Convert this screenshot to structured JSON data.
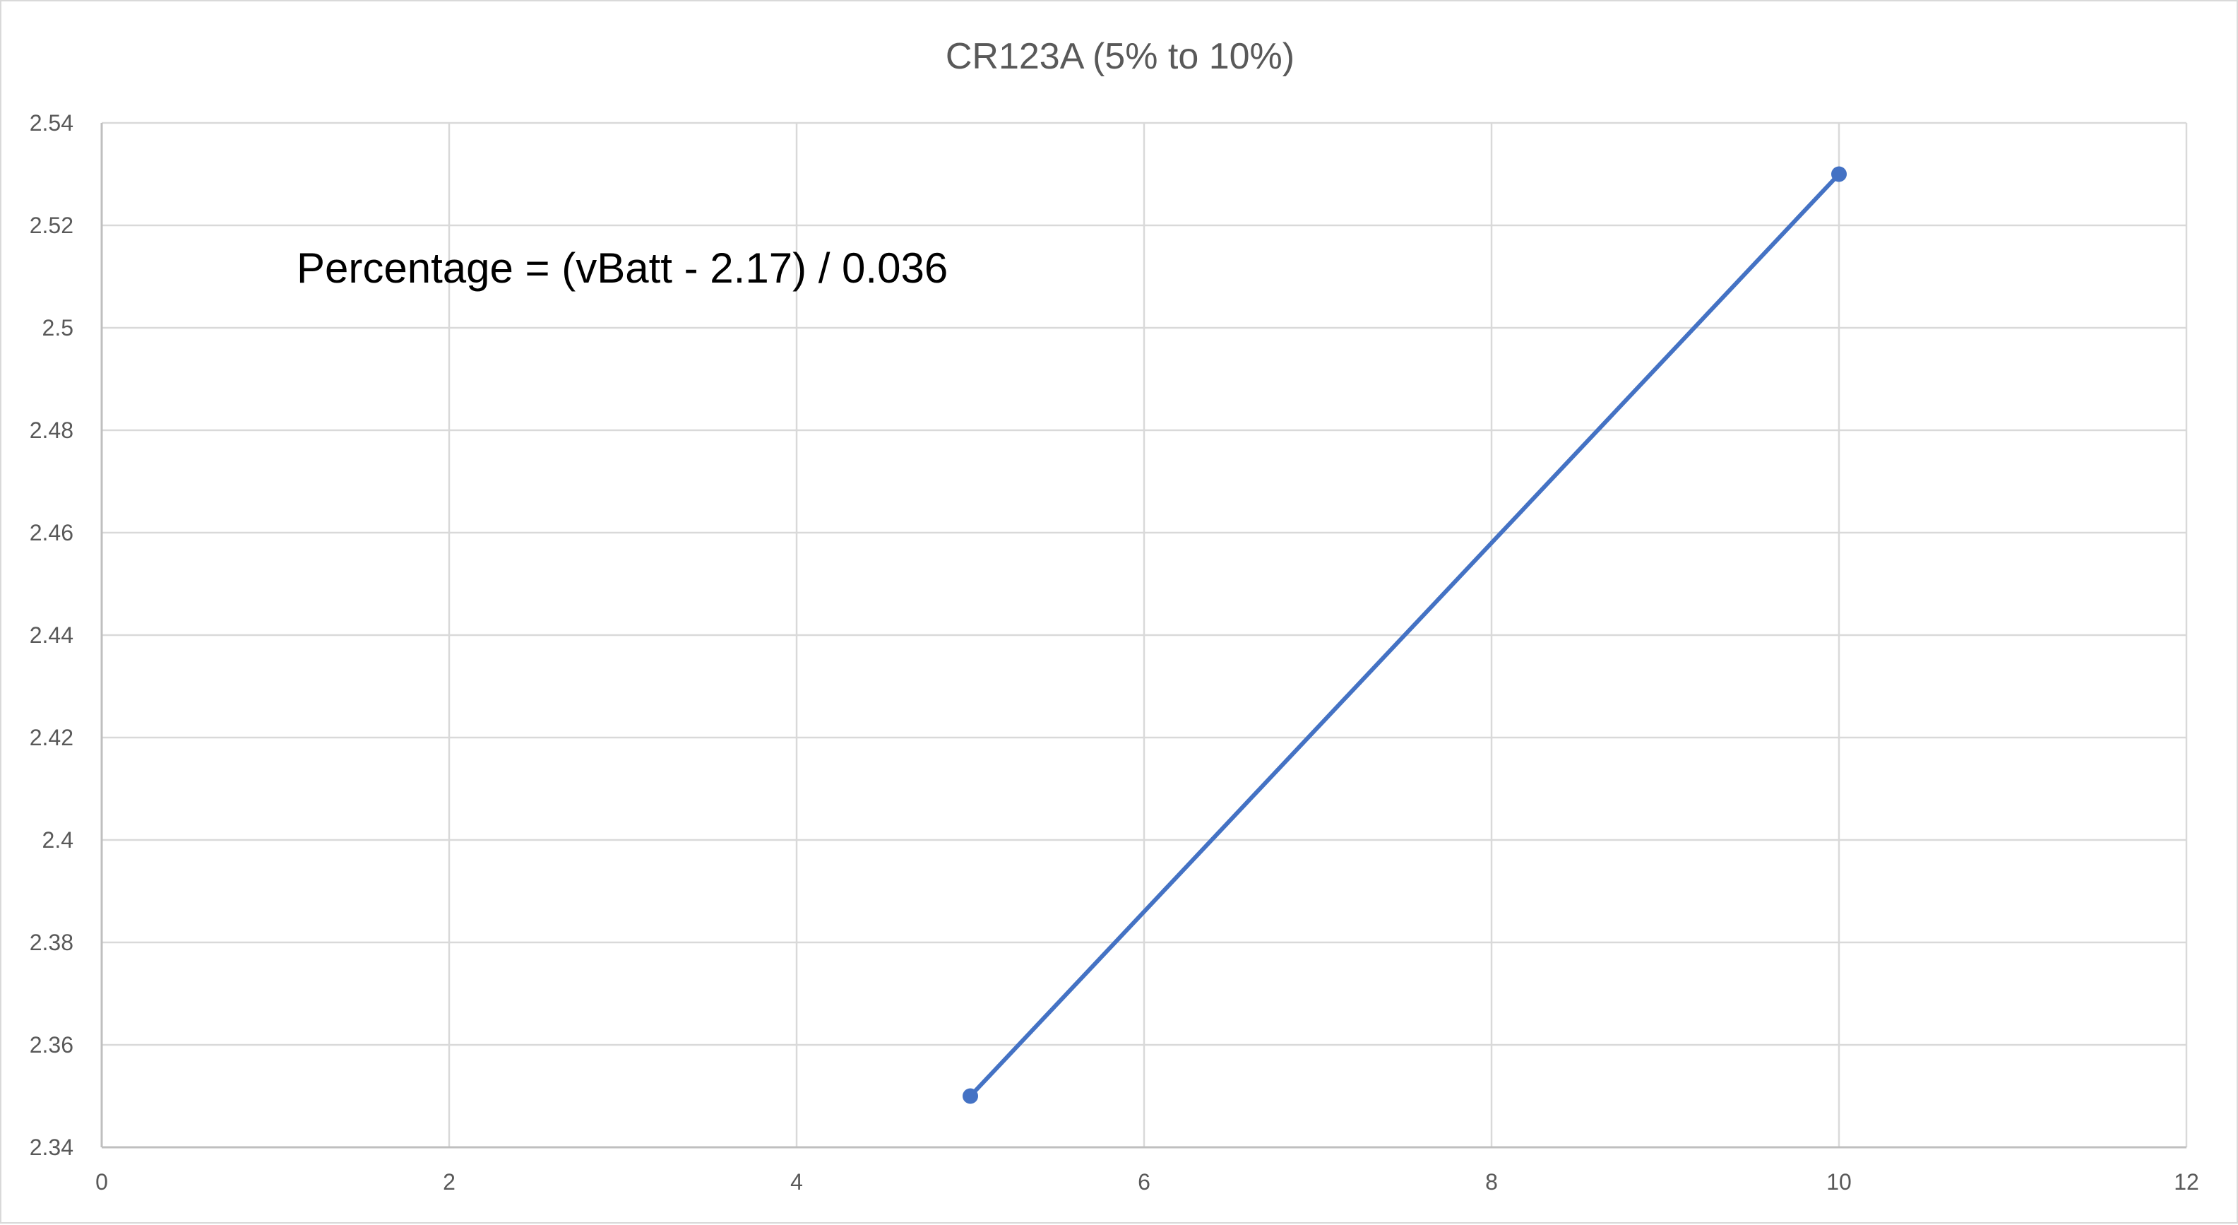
{
  "chart_data": {
    "type": "scatter",
    "title": "CR123A (5% to 10%)",
    "xlabel": "",
    "ylabel": "",
    "xlim": [
      0,
      12
    ],
    "ylim": [
      2.34,
      2.54
    ],
    "x_ticks": [
      "0",
      "2",
      "4",
      "6",
      "8",
      "10",
      "12"
    ],
    "y_ticks": [
      "2.34",
      "2.36",
      "2.38",
      "2.4",
      "2.42",
      "2.44",
      "2.46",
      "2.48",
      "2.5",
      "2.52",
      "2.54"
    ],
    "grid": true,
    "legend": "none",
    "series": [
      {
        "x": [
          5,
          10
        ],
        "y": [
          2.35,
          2.53
        ],
        "color": "#4472c4",
        "style": "line-with-markers"
      }
    ],
    "annotations": [
      {
        "text": "Percentage = (vBatt - 2.17) / 0.036"
      }
    ]
  }
}
